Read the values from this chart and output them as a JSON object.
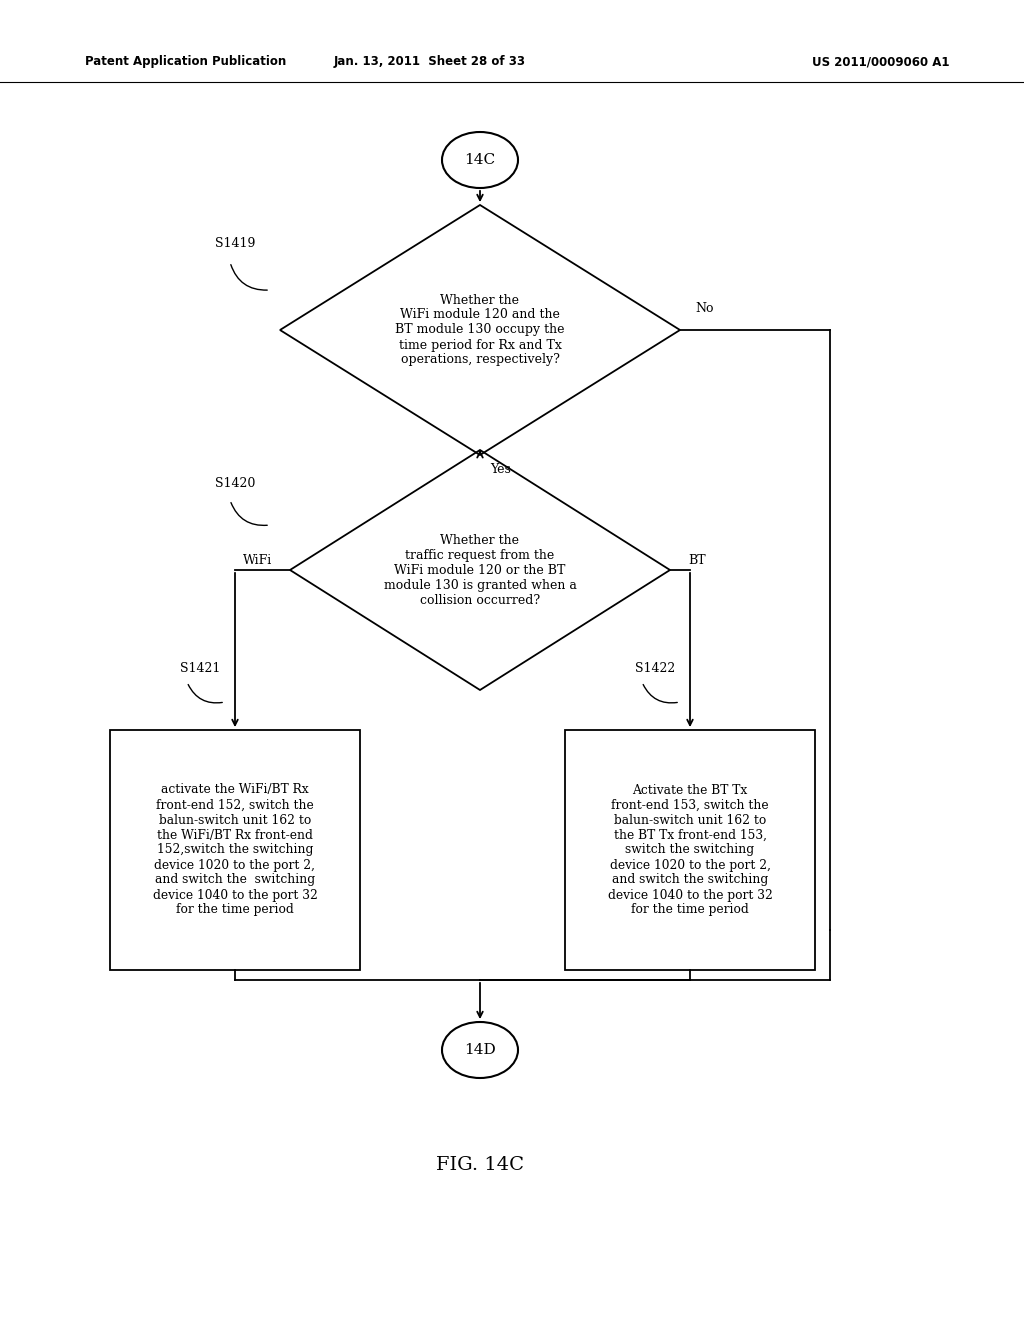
{
  "bg_color": "#ffffff",
  "header_left": "Patent Application Publication",
  "header_mid": "Jan. 13, 2011  Sheet 28 of 33",
  "header_right": "US 2011/0009060 A1",
  "figure_label": "FIG. 14C",
  "node_14C": "14C",
  "node_14D": "14D",
  "diamond1_text": "Whether the\nWiFi module 120 and the\nBT module 130 occupy the\ntime period for Rx and Tx\noperations, respectively?",
  "diamond1_label": "S1419",
  "diamond1_no": "No",
  "diamond1_yes": "Yes",
  "diamond2_text": "Whether the\ntraffic request from the\nWiFi module 120 or the BT\nmodule 130 is granted when a\ncollision occurred?",
  "diamond2_label": "S1420",
  "diamond2_wifi": "WiFi",
  "diamond2_bt": "BT",
  "box1_label": "S1421",
  "box1_text": "activate the WiFi/BT Rx\nfront-end 152, switch the\nbalun-switch unit 162 to\nthe WiFi/BT Rx front-end\n152,switch the switching\ndevice 1020 to the port 2,\nand switch the  switching\ndevice 1040 to the port 32\nfor the time period",
  "box2_label": "S1422",
  "box2_text": "Activate the BT Tx\nfront-end 153, switch the\nbalun-switch unit 162 to\nthe BT Tx front-end 153,\nswitch the switching\ndevice 1020 to the port 2,\nand switch the switching\ndevice 1040 to the port 32\nfor the time period"
}
